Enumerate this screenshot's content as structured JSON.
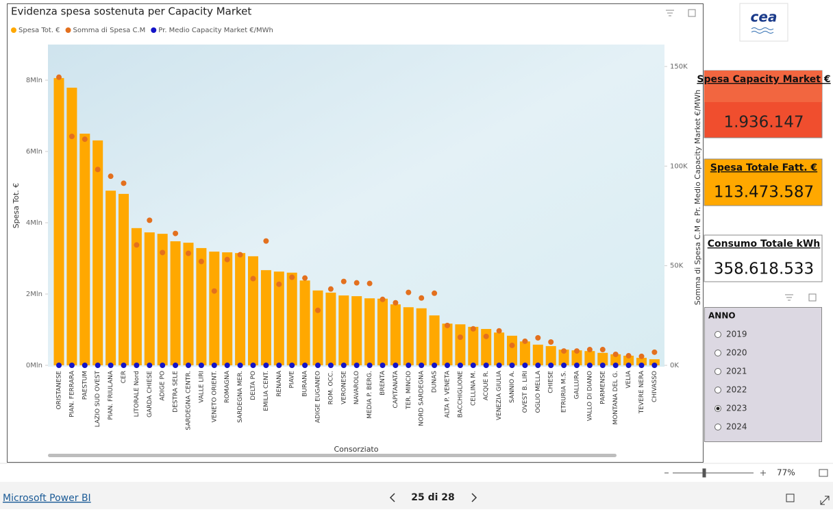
{
  "chart_data": {
    "type": "bar",
    "title": "Evidenza spesa sostenuta per Capacity Market",
    "x_label": "Consorziato",
    "y_label": "Spesa Tot. €",
    "y2_label": "Somma di Spesa C.M e Pr. Medio Capacity Market €/MWh",
    "categories": [
      "ORISTANESE",
      "PIAN. FERRARA",
      "PAESTUM",
      "LAZIO SUD OVEST",
      "PIAN. FRIULANA",
      "CER",
      "LITORALE Nord",
      "GARDA CHIESE",
      "ADIGE PO",
      "DESTRA SELE",
      "SARDEGNA CENTR.",
      "VALLE LIRI",
      "VENETO ORIENT.",
      "ROMAGNA",
      "SARDEGNA MER.",
      "DELTA PO",
      "EMILIA CENT.",
      "RENANA",
      "PIAVE",
      "BURANA",
      "ADIGE EUGANEO",
      "ROM. OCC.",
      "VERONESE",
      "NAVAROLO",
      "MEDIA P. BERG.",
      "BRENTA",
      "CAPITANATA",
      "TER. MINCIO",
      "NORD SARDEGNA",
      "DUNAS",
      "ALTA P. VENETA",
      "BACCHIGLIONE",
      "CELLINA M.",
      "ACQUE R.",
      "VENEZIA GIULIA",
      "SANNIO A.",
      "OVEST B. LIRI",
      "OGLIO MELLA",
      "CHIESE",
      "ETRURIA M.S.",
      "GALLURA",
      "VALLO DI DIANO",
      "PARMENSE",
      "MONTANA DEL G.",
      "VELIA",
      "TEVERE NERA",
      "CHIVASSO"
    ],
    "series": [
      {
        "name": "Spesa Tot. €",
        "type": "bar",
        "color": "#FFA800",
        "values": [
          8060000,
          7790000,
          6500000,
          6310000,
          4900000,
          4810000,
          3850000,
          3730000,
          3690000,
          3480000,
          3440000,
          3290000,
          3190000,
          3170000,
          3150000,
          3060000,
          2670000,
          2630000,
          2600000,
          2380000,
          2100000,
          2040000,
          1960000,
          1940000,
          1880000,
          1870000,
          1710000,
          1630000,
          1600000,
          1400000,
          1170000,
          1150000,
          1080000,
          1020000,
          920000,
          830000,
          670000,
          580000,
          540000,
          440000,
          420000,
          400000,
          350000,
          310000,
          270000,
          210000,
          170000
        ]
      },
      {
        "name": "Somma di Spesa C.M",
        "type": "scatter",
        "axis": "y2",
        "color": "#E3701E",
        "values": [
          144600,
          114900,
          113500,
          98300,
          94900,
          91400,
          60400,
          72800,
          56600,
          66200,
          56200,
          52100,
          37300,
          53100,
          55500,
          43500,
          62400,
          40700,
          44200,
          43800,
          27600,
          38300,
          42100,
          41400,
          41100,
          33100,
          31400,
          36600,
          33800,
          36200,
          20000,
          14100,
          18300,
          14500,
          17300,
          10000,
          12100,
          13800,
          11700,
          7200,
          7200,
          7900,
          7900,
          5500,
          4800,
          4500,
          6600
        ]
      },
      {
        "name": "Pr. Medio Capacity Market €/MWh",
        "type": "scatter",
        "axis": "y2",
        "color": "#1414C8",
        "values": [
          5.4,
          5.4,
          5.4,
          5.4,
          5.4,
          5.4,
          5.4,
          5.4,
          5.4,
          5.4,
          5.4,
          5.4,
          5.4,
          5.4,
          5.4,
          5.4,
          5.4,
          5.4,
          5.4,
          5.4,
          5.4,
          5.4,
          5.4,
          5.4,
          5.4,
          5.4,
          5.4,
          5.4,
          5.4,
          5.4,
          5.4,
          5.4,
          5.4,
          5.4,
          5.4,
          5.4,
          5.4,
          5.4,
          5.4,
          5.4,
          5.4,
          5.4,
          5.4,
          5.4,
          5.4,
          5.4,
          5.4
        ]
      }
    ],
    "ylim": [
      0,
      9000000
    ],
    "yticks": [
      {
        "value": 0,
        "label": "0Mln"
      },
      {
        "value": 2000000,
        "label": "2Mln"
      },
      {
        "value": 4000000,
        "label": "4Mln"
      },
      {
        "value": 6000000,
        "label": "6Mln"
      },
      {
        "value": 8000000,
        "label": "8Mln"
      }
    ],
    "y2lim": [
      0,
      161000
    ],
    "y2ticks": [
      {
        "value": 0,
        "label": "0K"
      },
      {
        "value": 50000,
        "label": "50K"
      },
      {
        "value": 100000,
        "label": "100K"
      },
      {
        "value": 150000,
        "label": "150K"
      }
    ],
    "legend": "top-left"
  },
  "logo": "cea",
  "cards": [
    {
      "title": "Spesa Capacity Market €",
      "value": "1.936.147"
    },
    {
      "title": "Spesa Totale Fatt. €",
      "value": "113.473.587"
    },
    {
      "title": "Consumo Totale kWh",
      "value": "358.618.533"
    }
  ],
  "slicer": {
    "title": "ANNO",
    "options": [
      "2019",
      "2020",
      "2021",
      "2022",
      "2023",
      "2024"
    ],
    "selected": "2023"
  },
  "zoom": "77%",
  "footer": {
    "brand": "Microsoft Power BI",
    "page": "25 di 28"
  }
}
